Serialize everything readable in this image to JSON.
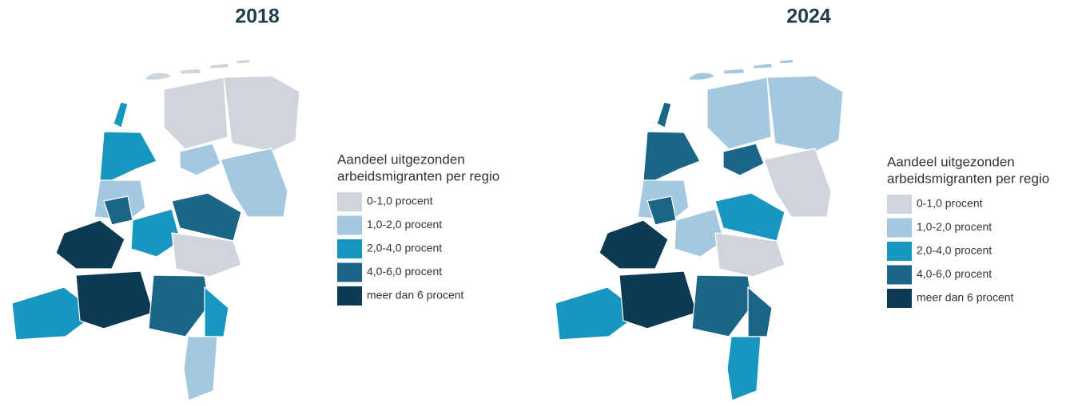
{
  "maps": [
    {
      "title": "2018",
      "legend": {
        "title_lines": [
          "Aandeel uitgezonden",
          "arbeidsmigranten per regio"
        ],
        "items": [
          {
            "label": "0-1,0 procent",
            "color": "#d0d5db"
          },
          {
            "label": "1,0-2,0 procent",
            "color": "#a5c8e1"
          },
          {
            "label": "2,0-4,0 procent",
            "color": "#1797bf"
          },
          {
            "label": "4,0-6,0 procent",
            "color": "#1b6688"
          },
          {
            "label": "meer dan 6 procent",
            "color": "#0b3a52"
          }
        ]
      }
    },
    {
      "title": "2024",
      "legend": {
        "title_lines": [
          "Aandeel uitgezonden",
          "arbeidsmigranten per regio"
        ],
        "items": [
          {
            "label": "0-1,0 procent",
            "color": "#d0d5db"
          },
          {
            "label": "1,0-2,0 procent",
            "color": "#a5c8e1"
          },
          {
            "label": "2,0-4,0 procent",
            "color": "#1797bf"
          },
          {
            "label": "4,0-6,0 procent",
            "color": "#1b6688"
          },
          {
            "label": "meer dan 6 procent",
            "color": "#0b3a52"
          }
        ]
      }
    }
  ]
}
